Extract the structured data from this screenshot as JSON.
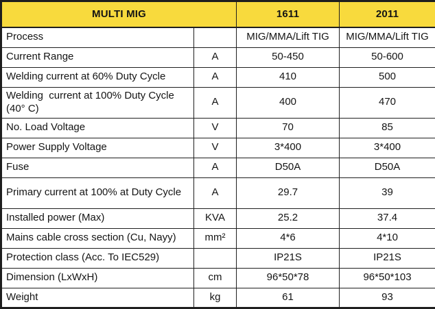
{
  "colors": {
    "header_bg": "#f8da3d",
    "border": "#1e1e1e",
    "text": "#141414",
    "body_bg": "#ffffff"
  },
  "header": {
    "title": "MULTI MIG",
    "model1": "1611",
    "model2": "2011"
  },
  "rows": [
    {
      "label": "Process",
      "unit": "",
      "v1": "MIG/MMA/Lift TIG",
      "v2": "MIG/MMA/Lift TIG"
    },
    {
      "label": "Current Range",
      "unit": "A",
      "v1": "50-450",
      "v2": "50-600"
    },
    {
      "label": "Welding current at 60% Duty Cycle",
      "unit": "A",
      "v1": "410",
      "v2": "500"
    },
    {
      "label": "Welding  current at 100% Duty Cycle (40° C)",
      "unit": "A",
      "v1": "400",
      "v2": "470"
    },
    {
      "label": "No. Load Voltage",
      "unit": "V",
      "v1": "70",
      "v2": "85"
    },
    {
      "label": "Power Supply Voltage",
      "unit": "V",
      "v1": "3*400",
      "v2": "3*400"
    },
    {
      "label": "Fuse",
      "unit": "A",
      "v1": "D50A",
      "v2": "D50A"
    },
    {
      "label": "Primary current at 100% at Duty Cycle",
      "unit": "A",
      "v1": "29.7",
      "v2": "39"
    },
    {
      "label": "Installed power (Max)",
      "unit": "KVA",
      "v1": "25.2",
      "v2": "37.4"
    },
    {
      "label": "Mains cable cross section (Cu, Nayy)",
      "unit": "mm²",
      "v1": "4*6",
      "v2": "4*10"
    },
    {
      "label": "Protection class (Acc. To IEC529)",
      "unit": "",
      "v1": "IP21S",
      "v2": "IP21S"
    },
    {
      "label": "Dimension (LxWxH)",
      "unit": "cm",
      "v1": "96*50*78",
      "v2": "96*50*103"
    },
    {
      "label": "Weight",
      "unit": "kg",
      "v1": "61",
      "v2": "93"
    }
  ]
}
